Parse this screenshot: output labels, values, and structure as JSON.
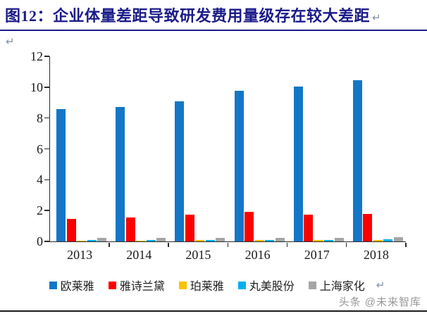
{
  "title": {
    "text": "图12：企业体量差距导致研发费用量级存在较大差距",
    "return_mark": "↵"
  },
  "paragraph_mark": "↵",
  "watermark": "头条 @未来智库",
  "colors": {
    "title_navy": "#1b1b8a",
    "axis": "#2b2b2b",
    "series_blue": "#1476c6",
    "series_red": "#fc0000",
    "series_yellow": "#ffc000",
    "series_cyan": "#00b0f0",
    "series_gray": "#a5a5a5"
  },
  "chart_data": {
    "type": "bar",
    "title": "图12：企业体量差距导致研发费用量级存在较大差距",
    "xlabel": "",
    "ylabel": "",
    "categories": [
      "2013",
      "2014",
      "2015",
      "2016",
      "2017",
      "2018"
    ],
    "series": [
      {
        "name": "欧莱雅",
        "color": "#1476c6",
        "values": [
          8.6,
          8.7,
          9.1,
          9.75,
          10.05,
          10.45
        ]
      },
      {
        "name": "雅诗兰黛",
        "color": "#fc0000",
        "values": [
          1.45,
          1.55,
          1.75,
          1.9,
          1.75,
          1.8
        ]
      },
      {
        "name": "珀莱雅",
        "color": "#ffc000",
        "values": [
          0.06,
          0.06,
          0.07,
          0.08,
          0.08,
          0.09
        ]
      },
      {
        "name": "丸美股份",
        "color": "#00b0f0",
        "values": [
          0.09,
          0.1,
          0.1,
          0.1,
          0.1,
          0.12
        ]
      },
      {
        "name": "上海家化",
        "color": "#a5a5a5",
        "values": [
          0.22,
          0.22,
          0.23,
          0.23,
          0.25,
          0.28
        ]
      }
    ],
    "ylim": [
      0,
      12
    ],
    "yticks": [
      0,
      2,
      4,
      6,
      8,
      10,
      12
    ],
    "grid": false,
    "legend_position": "bottom"
  }
}
